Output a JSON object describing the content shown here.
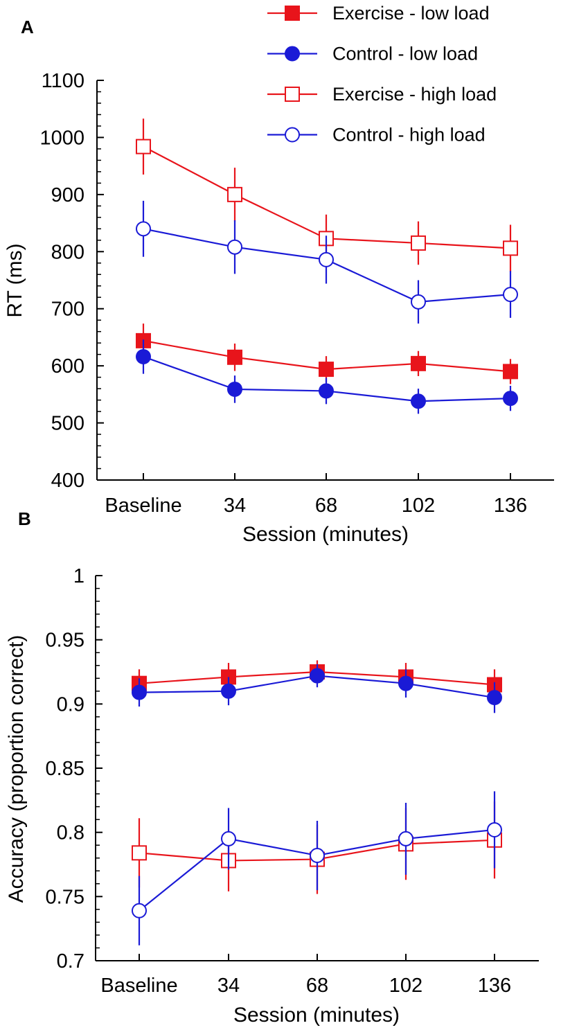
{
  "legend": {
    "items": [
      {
        "label": "Exercise - low load",
        "color": "#e8141b",
        "marker": "square",
        "filled": true
      },
      {
        "label": "Control - low load",
        "color": "#1a1ad6",
        "marker": "circle",
        "filled": true
      },
      {
        "label": "Exercise - high load",
        "color": "#e8141b",
        "marker": "square",
        "filled": false
      },
      {
        "label": "Control - high load",
        "color": "#1a1ad6",
        "marker": "circle",
        "filled": false
      }
    ]
  },
  "chart_data": [
    {
      "panel": "A",
      "type": "line",
      "xlabel": "Session (minutes)",
      "ylabel": "RT (ms)",
      "categories": [
        "Baseline",
        "34",
        "68",
        "102",
        "136"
      ],
      "ylim": [
        400,
        1100
      ],
      "yticks": [
        400,
        500,
        600,
        700,
        800,
        900,
        1000,
        1100
      ],
      "ytick_labels": [
        "400",
        "500",
        "600",
        "700",
        "800",
        "900",
        "1000",
        "1100"
      ],
      "series": [
        {
          "name": "Exercise - high load",
          "color": "#e8141b",
          "marker": "square",
          "filled": false,
          "values": [
            984,
            900,
            823,
            815,
            806
          ],
          "errors": [
            49,
            47,
            42,
            38,
            41
          ]
        },
        {
          "name": "Control - high load",
          "color": "#1a1ad6",
          "marker": "circle",
          "filled": false,
          "values": [
            840,
            808,
            786,
            712,
            725
          ],
          "errors": [
            49,
            47,
            42,
            38,
            41
          ]
        },
        {
          "name": "Exercise - low load",
          "color": "#e8141b",
          "marker": "square",
          "filled": true,
          "values": [
            644,
            615,
            594,
            604,
            590
          ],
          "errors": [
            30,
            24,
            23,
            22,
            22
          ]
        },
        {
          "name": "Control - low load",
          "color": "#1a1ad6",
          "marker": "circle",
          "filled": true,
          "values": [
            616,
            559,
            556,
            538,
            543
          ],
          "errors": [
            30,
            24,
            23,
            22,
            22
          ]
        }
      ]
    },
    {
      "panel": "B",
      "type": "line",
      "xlabel": "Session (minutes)",
      "ylabel": "Accuracy (proportion correct)",
      "categories": [
        "Baseline",
        "34",
        "68",
        "102",
        "136"
      ],
      "ylim": [
        0.7,
        1
      ],
      "yticks": [
        0.7,
        0.75,
        0.8,
        0.85,
        0.9,
        0.95,
        1
      ],
      "ytick_labels": [
        "0.7",
        "0.75",
        "0.8",
        "0.85",
        "0.9",
        "0.95",
        "1"
      ],
      "series": [
        {
          "name": "Exercise - low load",
          "color": "#e8141b",
          "marker": "square",
          "filled": true,
          "values": [
            0.916,
            0.921,
            0.925,
            0.921,
            0.915
          ],
          "errors": [
            0.011,
            0.011,
            0.009,
            0.011,
            0.012
          ]
        },
        {
          "name": "Control - low load",
          "color": "#1a1ad6",
          "marker": "circle",
          "filled": true,
          "values": [
            0.909,
            0.91,
            0.922,
            0.916,
            0.905
          ],
          "errors": [
            0.011,
            0.011,
            0.009,
            0.011,
            0.012
          ]
        },
        {
          "name": "Exercise - high load",
          "color": "#e8141b",
          "marker": "square",
          "filled": false,
          "values": [
            0.784,
            0.778,
            0.779,
            0.791,
            0.794
          ],
          "errors": [
            0.027,
            0.024,
            0.027,
            0.028,
            0.03
          ]
        },
        {
          "name": "Control - high load",
          "color": "#1a1ad6",
          "marker": "circle",
          "filled": false,
          "values": [
            0.739,
            0.795,
            0.782,
            0.795,
            0.802
          ],
          "errors": [
            0.027,
            0.024,
            0.027,
            0.028,
            0.03
          ]
        }
      ]
    }
  ]
}
